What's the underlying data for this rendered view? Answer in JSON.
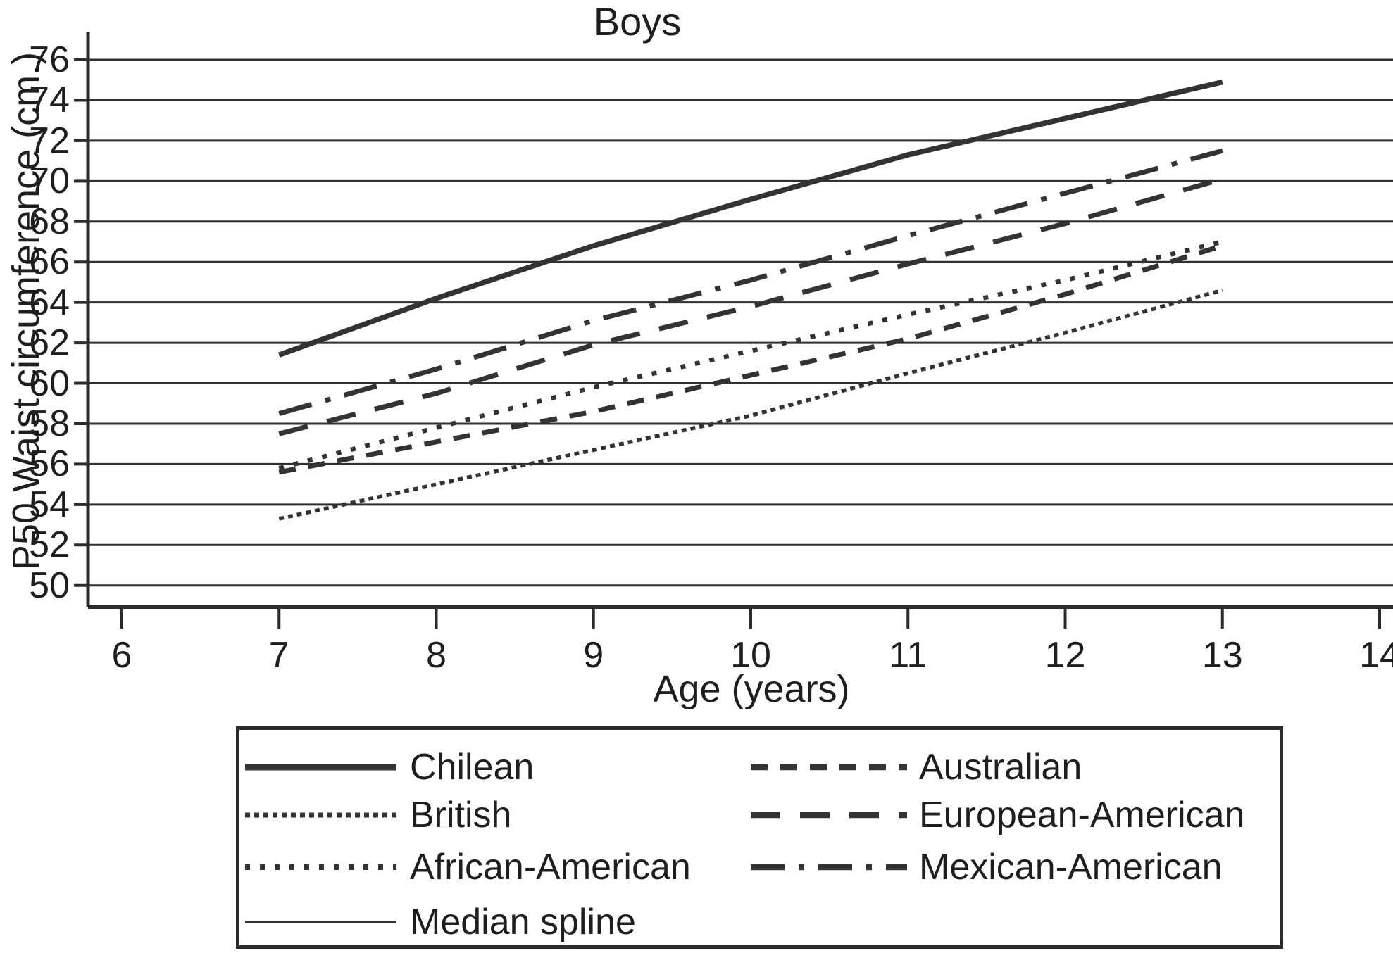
{
  "title": "Boys",
  "y_axis": {
    "label": "P50 Waist circumference (cm.)",
    "min": 50,
    "max": 76,
    "ticks": [
      76,
      74,
      72,
      70,
      68,
      66,
      64,
      62,
      60,
      58,
      56,
      54,
      52,
      50
    ]
  },
  "x_axis": {
    "label": "Age (years)",
    "min": 6,
    "max": 14,
    "ticks": [
      6,
      7,
      8,
      9,
      10,
      11,
      12,
      13,
      14
    ]
  },
  "legend": {
    "items": [
      {
        "label": "Chilean",
        "style": "solid-thick",
        "column": 0,
        "row": 0
      },
      {
        "label": "British",
        "style": "dot-fine",
        "column": 0,
        "row": 1
      },
      {
        "label": "African-American",
        "style": "dot-spaced",
        "column": 0,
        "row": 2
      },
      {
        "label": "Median spline",
        "style": "solid-thin",
        "column": 0,
        "row": 3
      },
      {
        "label": "Australian",
        "style": "dash-short",
        "column": 1,
        "row": 0
      },
      {
        "label": "European-American",
        "style": "dash-long",
        "column": 1,
        "row": 1
      },
      {
        "label": "Mexican-American",
        "style": "dash-dot",
        "column": 1,
        "row": 2
      }
    ]
  },
  "chart_data": {
    "type": "line",
    "title": "Boys",
    "xlabel": "Age (years)",
    "ylabel": "P50 Waist circumference (cm.)",
    "xlim": [
      6,
      14
    ],
    "ylim": [
      50,
      77
    ],
    "grid": "horizontal",
    "legend_position": "bottom",
    "x": [
      7,
      8,
      9,
      10,
      11,
      12,
      13
    ],
    "series": [
      {
        "name": "Chilean",
        "style": "solid-thick",
        "values": [
          61.4,
          64.2,
          66.8,
          69.1,
          71.3,
          73.1,
          74.9
        ]
      },
      {
        "name": "Mexican-American",
        "style": "dash-dot",
        "values": [
          58.5,
          60.7,
          63.1,
          65.1,
          67.3,
          69.4,
          71.5
        ]
      },
      {
        "name": "European-American",
        "style": "dash-long",
        "values": [
          57.5,
          59.5,
          61.9,
          63.8,
          65.9,
          67.9,
          70.1
        ]
      },
      {
        "name": "African-American",
        "style": "dot-spaced",
        "values": [
          55.8,
          57.8,
          59.8,
          61.6,
          63.4,
          65.1,
          67.0
        ]
      },
      {
        "name": "Australian",
        "style": "dash-short",
        "values": [
          55.6,
          57.1,
          58.6,
          60.4,
          62.2,
          64.4,
          66.8
        ]
      },
      {
        "name": "British",
        "style": "dot-fine",
        "values": [
          53.3,
          55.0,
          56.7,
          58.4,
          60.5,
          62.5,
          64.6
        ]
      }
    ],
    "colors": {
      "line": "#333333",
      "grid": "#2f2f2f",
      "axis": "#2b2b2b",
      "text": "#1e1e1e"
    }
  }
}
